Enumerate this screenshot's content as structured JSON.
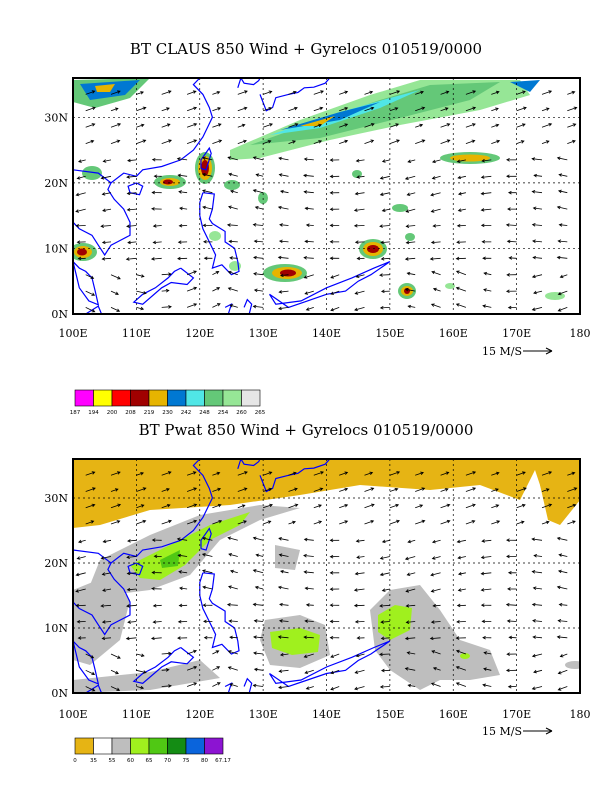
{
  "panels": [
    {
      "title": "BT CLAUS 850 Wind + Gyrelocs 010519/0000",
      "lon_labels": [
        "100E",
        "110E",
        "120E",
        "130E",
        "140E",
        "150E",
        "160E",
        "170E",
        "180"
      ],
      "lat_labels": [
        "0N",
        "10N",
        "20N",
        "30N"
      ],
      "vector_ref_label": "15 M/S",
      "legend": {
        "values": [
          "187",
          "194",
          "200",
          "208",
          "219",
          "230",
          "242",
          "248",
          "254",
          "260",
          "265"
        ],
        "colors": [
          "#ff00ff",
          "#ffff00",
          "#ff0000",
          "#a00000",
          "#e6b400",
          "#0078d2",
          "#50e6e6",
          "#64c878",
          "#96e696",
          "#e6e6e6"
        ]
      }
    },
    {
      "title": "BT Pwat 850 Wind + Gyrelocs 010519/0000",
      "lon_labels": [
        "100E",
        "110E",
        "120E",
        "130E",
        "140E",
        "150E",
        "160E",
        "170E",
        "180"
      ],
      "lat_labels": [
        "0N",
        "10N",
        "20N",
        "30N"
      ],
      "vector_ref_label": "15 M/S",
      "legend": {
        "values": [
          "0",
          "35",
          "55",
          "60",
          "65",
          "70",
          "75",
          "80",
          "67.17"
        ],
        "colors": [
          "#e6b414",
          "#ffffff",
          "#bebebe",
          "#a0f01e",
          "#50c814",
          "#148c14",
          "#0a64dc",
          "#8c14d2"
        ]
      }
    }
  ],
  "map_data": {
    "lon_range": [
      100,
      180
    ],
    "lat_range": [
      0,
      36
    ],
    "coast_color": "#0000ff"
  }
}
